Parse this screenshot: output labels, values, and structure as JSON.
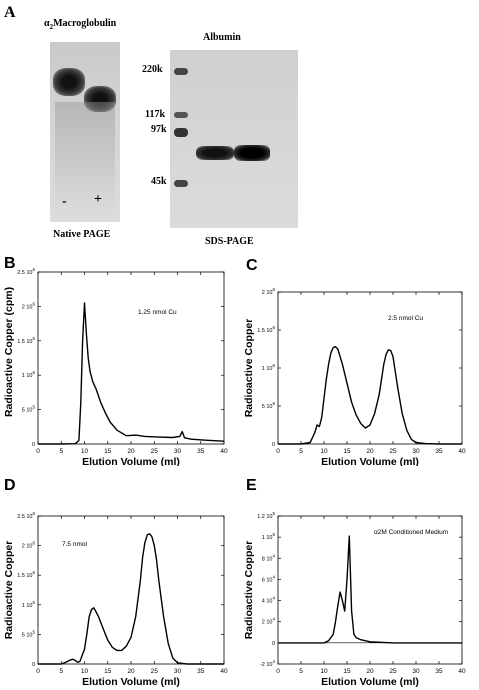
{
  "panel_a": {
    "letter": "A",
    "macro_title_greek": "α",
    "macro_title_sub": "2",
    "macro_title_rest": "Macroglobulin",
    "lane_minus": "-",
    "lane_plus": "+",
    "native_caption": "Native PAGE",
    "albumin_title": "Albumin",
    "markers": [
      "220k",
      "117k",
      "97k",
      "45k"
    ],
    "sds_caption": "SDS-PAGE"
  },
  "chart_data": [
    {
      "type": "line",
      "letter": "B",
      "annotation": "1.25 nmol Cu",
      "xlabel": "Elution Volume (ml)",
      "ylabel": "Radioactive Copper (cpm)",
      "xlim": [
        0,
        40
      ],
      "ylim": [
        0,
        2500000
      ],
      "xticks": [
        0,
        5,
        10,
        15,
        20,
        25,
        30,
        35,
        40
      ],
      "yticks": [
        {
          "v": 0,
          "m": "0",
          "e": ""
        },
        {
          "v": 500000,
          "m": "5 10",
          "e": "5"
        },
        {
          "v": 1000000,
          "m": "1 10",
          "e": "6"
        },
        {
          "v": 1500000,
          "m": "1.5 10",
          "e": "6"
        },
        {
          "v": 2000000,
          "m": "2 10",
          "e": "6"
        },
        {
          "v": 2500000,
          "m": "2.5 10",
          "e": "6"
        }
      ],
      "x": [
        0,
        5,
        8,
        8.8,
        9.2,
        9.6,
        10,
        10.4,
        10.8,
        11.2,
        11.8,
        12.5,
        13.5,
        14.5,
        15.5,
        17,
        19,
        21,
        23,
        26,
        29,
        30.5,
        31,
        31.5,
        33,
        36,
        40
      ],
      "y": [
        0,
        0,
        5000,
        50000,
        600000,
        1500000,
        2050000,
        1600000,
        1250000,
        1050000,
        900000,
        800000,
        600000,
        450000,
        320000,
        200000,
        120000,
        130000,
        110000,
        100000,
        95000,
        110000,
        180000,
        90000,
        70000,
        55000,
        40000
      ]
    },
    {
      "type": "line",
      "letter": "C",
      "annotation": "2.5 nmol Cu",
      "xlabel": "Elution Volume (ml)",
      "ylabel": "Radioactive Copper",
      "xlim": [
        0,
        40
      ],
      "ylim": [
        0,
        2000000
      ],
      "xticks": [
        0,
        5,
        10,
        15,
        20,
        25,
        30,
        35,
        40
      ],
      "yticks": [
        {
          "v": 0,
          "m": "0",
          "e": ""
        },
        {
          "v": 500000,
          "m": "5 10",
          "e": "5"
        },
        {
          "v": 1000000,
          "m": "1 10",
          "e": "6"
        },
        {
          "v": 1500000,
          "m": "1.5 10",
          "e": "6"
        },
        {
          "v": 2000000,
          "m": "2 10",
          "e": "6"
        }
      ],
      "x": [
        0,
        5,
        7,
        8,
        8.5,
        9,
        9.5,
        10,
        10.5,
        11,
        11.5,
        12,
        12.5,
        13,
        14,
        15,
        16,
        17,
        18,
        19,
        20,
        21,
        22,
        22.5,
        23,
        23.5,
        24,
        24.5,
        25,
        25.5,
        26,
        27,
        28,
        29,
        30,
        32,
        35,
        40
      ],
      "y": [
        0,
        0,
        20000,
        150000,
        250000,
        230000,
        350000,
        600000,
        850000,
        1050000,
        1200000,
        1270000,
        1280000,
        1250000,
        1050000,
        800000,
        550000,
        380000,
        270000,
        210000,
        250000,
        400000,
        650000,
        850000,
        1050000,
        1180000,
        1240000,
        1230000,
        1150000,
        950000,
        750000,
        400000,
        180000,
        60000,
        20000,
        5000,
        0,
        0
      ]
    },
    {
      "type": "line",
      "letter": "D",
      "annotation": "7.5 nmol",
      "xlabel": "Elution Volume (ml)",
      "ylabel": "Radioactive Copper",
      "xlim": [
        0,
        40
      ],
      "ylim": [
        0,
        2500000
      ],
      "xticks": [
        0,
        5,
        10,
        15,
        20,
        25,
        30,
        35,
        40
      ],
      "yticks": [
        {
          "v": 0,
          "m": "0",
          "e": ""
        },
        {
          "v": 500000,
          "m": "5 10",
          "e": "5"
        },
        {
          "v": 1000000,
          "m": "1 10",
          "e": "6"
        },
        {
          "v": 1500000,
          "m": "1.5 10",
          "e": "6"
        },
        {
          "v": 2000000,
          "m": "2 10",
          "e": "6"
        },
        {
          "v": 2500000,
          "m": "2.5 10",
          "e": "6"
        }
      ],
      "x": [
        0,
        5,
        6,
        7,
        7.5,
        8,
        8.5,
        9,
        10,
        10.5,
        11,
        11.5,
        12,
        12.5,
        13,
        14,
        15,
        16,
        17,
        18,
        19,
        20,
        21,
        22,
        22.5,
        23,
        23.5,
        24,
        24.5,
        25,
        25.5,
        26,
        27,
        28,
        29,
        30,
        32,
        35,
        40
      ],
      "y": [
        0,
        0,
        30000,
        70000,
        80000,
        60000,
        30000,
        40000,
        250000,
        500000,
        800000,
        920000,
        950000,
        880000,
        800000,
        600000,
        400000,
        280000,
        230000,
        230000,
        300000,
        450000,
        800000,
        1400000,
        1800000,
        2050000,
        2180000,
        2200000,
        2150000,
        2000000,
        1750000,
        1400000,
        800000,
        350000,
        100000,
        20000,
        0,
        0,
        0
      ]
    },
    {
      "type": "line",
      "letter": "E",
      "annotation": "α2M Conditioned Medium",
      "xlabel": "Elution Volume (ml)",
      "ylabel": "Radioactive Copper",
      "xlim": [
        0,
        40
      ],
      "ylim": [
        -20000,
        120000
      ],
      "xticks": [
        0,
        5,
        10,
        15,
        20,
        25,
        30,
        35,
        40
      ],
      "yticks": [
        {
          "v": -20000,
          "m": "-2 10",
          "e": "4"
        },
        {
          "v": 0,
          "m": "0",
          "e": ""
        },
        {
          "v": 20000,
          "m": "2 10",
          "e": "4"
        },
        {
          "v": 40000,
          "m": "4 10",
          "e": "4"
        },
        {
          "v": 60000,
          "m": "6 10",
          "e": "4"
        },
        {
          "v": 80000,
          "m": "8 10",
          "e": "4"
        },
        {
          "v": 100000,
          "m": "1 10",
          "e": "5"
        },
        {
          "v": 120000,
          "m": "1.2 10",
          "e": "5"
        }
      ],
      "x": [
        0,
        5,
        10,
        11,
        12,
        12.5,
        13,
        13.5,
        14,
        14.5,
        15,
        15.5,
        16,
        16.5,
        17,
        18,
        20,
        25,
        30,
        35,
        40
      ],
      "y": [
        0,
        0,
        0,
        2000,
        8000,
        20000,
        35000,
        48000,
        40000,
        30000,
        60000,
        101000,
        30000,
        8000,
        5000,
        3000,
        1000,
        0,
        0,
        0,
        0
      ]
    }
  ]
}
